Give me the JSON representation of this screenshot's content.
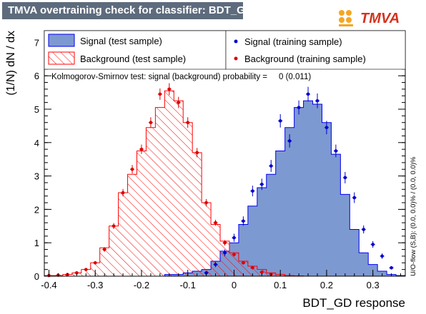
{
  "header": {
    "title": "TMVA overtraining check for classifier: BDT_GD",
    "logo_text": "TMVA"
  },
  "chart_data": {
    "type": "histogram",
    "title": "TMVA overtraining check for classifier: BDT_GD",
    "xlabel": "BDT_GD response",
    "ylabel": "(1/N) dN / dx",
    "xlim": [
      -0.41,
      0.37
    ],
    "ylim": [
      0,
      7.35
    ],
    "x_ticks": [
      -0.4,
      -0.3,
      -0.2,
      -0.1,
      0,
      0.1,
      0.2,
      0.3
    ],
    "x_tick_labels": [
      "-0.4",
      "-0.3",
      "-0.2",
      "-0.1",
      "0",
      "0.1",
      "0.2",
      "0.3"
    ],
    "y_ticks": [
      0,
      1,
      2,
      3,
      4,
      5,
      6,
      7
    ],
    "y_tick_labels": [
      "0",
      "1",
      "2",
      "3",
      "4",
      "5",
      "6",
      "7"
    ],
    "bins": {
      "edges": [
        -0.41,
        -0.39,
        -0.37,
        -0.35,
        -0.33,
        -0.31,
        -0.29,
        -0.27,
        -0.25,
        -0.23,
        -0.21,
        -0.19,
        -0.17,
        -0.15,
        -0.13,
        -0.11,
        -0.09,
        -0.07,
        -0.05,
        -0.03,
        -0.01,
        0.01,
        0.03,
        0.05,
        0.07,
        0.09,
        0.11,
        0.13,
        0.15,
        0.17,
        0.19,
        0.21,
        0.23,
        0.25,
        0.27,
        0.29,
        0.31,
        0.33,
        0.35,
        0.37
      ]
    },
    "series": [
      {
        "name": "Signal (test sample)",
        "style": "filled",
        "color": "#7d99d1",
        "line_color": "#0000ee",
        "values": [
          0,
          0,
          0,
          0,
          0,
          0,
          0,
          0,
          0,
          0,
          0,
          0,
          0,
          0.05,
          0.05,
          0.1,
          0.15,
          0.2,
          0.45,
          0.75,
          1.0,
          1.55,
          2.1,
          2.65,
          3.05,
          3.75,
          4.45,
          5.05,
          5.25,
          5.15,
          4.6,
          3.65,
          2.45,
          1.4,
          0.7,
          0.35,
          0.15,
          0.05,
          0.02
        ]
      },
      {
        "name": "Background (test sample)",
        "style": "hatched",
        "color": "#ff0000",
        "values": [
          0.02,
          0.02,
          0.05,
          0.1,
          0.2,
          0.4,
          0.85,
          1.5,
          2.5,
          3.05,
          3.75,
          4.45,
          5.05,
          5.55,
          5.25,
          4.6,
          3.7,
          2.2,
          1.55,
          1.05,
          0.7,
          0.45,
          0.3,
          0.2,
          0.1,
          0.05,
          0.02,
          0.01,
          0,
          0,
          0,
          0,
          0,
          0,
          0,
          0,
          0,
          0,
          0
        ]
      },
      {
        "name": "Signal (training sample)",
        "style": "markers",
        "color": "#0000cc",
        "x": [
          -0.06,
          -0.04,
          -0.02,
          0.0,
          0.02,
          0.04,
          0.06,
          0.08,
          0.1,
          0.12,
          0.14,
          0.16,
          0.18,
          0.2,
          0.22,
          0.24,
          0.26,
          0.28,
          0.3,
          0.32,
          0.34
        ],
        "values": [
          0.1,
          0.35,
          0.7,
          1.15,
          1.65,
          2.55,
          2.75,
          3.3,
          4.65,
          4.05,
          5.05,
          5.45,
          5.25,
          4.45,
          3.75,
          2.95,
          2.35,
          1.4,
          0.95,
          0.6,
          0.25
        ],
        "errors": [
          0.05,
          0.08,
          0.1,
          0.12,
          0.14,
          0.16,
          0.17,
          0.18,
          0.2,
          0.2,
          0.21,
          0.22,
          0.22,
          0.2,
          0.19,
          0.17,
          0.16,
          0.12,
          0.1,
          0.08,
          0.05
        ]
      },
      {
        "name": "Background (training sample)",
        "style": "markers",
        "color": "#dd0000",
        "x": [
          -0.4,
          -0.38,
          -0.36,
          -0.34,
          -0.32,
          -0.3,
          -0.28,
          -0.26,
          -0.24,
          -0.22,
          -0.2,
          -0.18,
          -0.16,
          -0.14,
          -0.12,
          -0.1,
          -0.08,
          -0.06,
          -0.04,
          -0.02,
          0.0,
          0.02,
          0.04,
          0.06,
          0.08
        ],
        "values": [
          0.02,
          0.03,
          0.05,
          0.1,
          0.2,
          0.4,
          0.8,
          1.5,
          2.5,
          3.2,
          3.8,
          4.6,
          5.45,
          5.6,
          5.2,
          4.6,
          3.7,
          2.2,
          1.6,
          1.0,
          0.65,
          0.4,
          0.25,
          0.12,
          0.06
        ],
        "errors": [
          0.01,
          0.01,
          0.02,
          0.03,
          0.04,
          0.05,
          0.07,
          0.09,
          0.11,
          0.13,
          0.14,
          0.16,
          0.17,
          0.18,
          0.17,
          0.16,
          0.14,
          0.11,
          0.09,
          0.08,
          0.06,
          0.05,
          0.04,
          0.03,
          0.02
        ]
      }
    ],
    "annotations": {
      "ks_text": "Kolmogorov-Smirnov test: signal (background) probability =     0 (0.011)",
      "side_text": "U/O-flow (S,B): (0.0, 0.0)% / (0.0, 0.0)%"
    },
    "legend_placement": "top",
    "grid": false
  }
}
